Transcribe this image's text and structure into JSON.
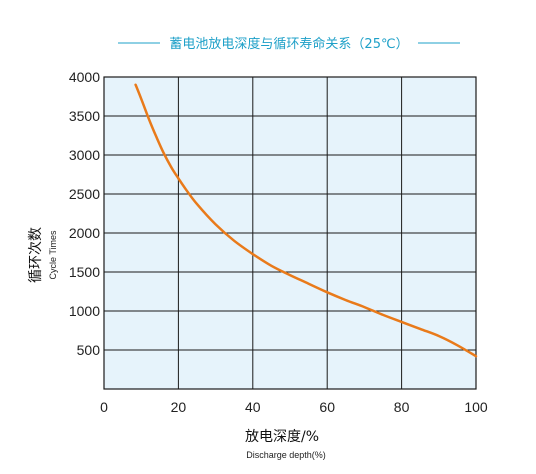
{
  "colors": {
    "title": "#1ea0c8",
    "plot_bg": "#e6f3fb",
    "grid": "#1a1a1a",
    "curve": "#e97a1a"
  },
  "chart_data": {
    "type": "line",
    "title": "蓄电池放电深度与循环寿命关系（25℃）",
    "xlabel": "放电深度/%",
    "xlabel_sub": "Discharge depth(%)",
    "ylabel": "循环次数",
    "ylabel_sub": "Cycle Times",
    "xlim": [
      0,
      100
    ],
    "ylim": [
      0,
      4000
    ],
    "x_ticks": [
      0,
      20,
      40,
      60,
      80,
      100
    ],
    "y_ticks": [
      500,
      1000,
      1500,
      2000,
      2500,
      3000,
      3500,
      4000
    ],
    "grid": true,
    "series": [
      {
        "x": [
          8.5,
          10,
          12,
          14,
          16,
          18,
          20,
          22,
          25,
          30,
          35,
          40,
          45,
          50,
          55,
          60,
          65,
          70,
          75,
          80,
          85,
          90,
          95,
          100
        ],
        "y": [
          3900,
          3720,
          3470,
          3240,
          3030,
          2850,
          2700,
          2560,
          2370,
          2110,
          1900,
          1730,
          1580,
          1460,
          1350,
          1240,
          1140,
          1050,
          950,
          860,
          770,
          680,
          560,
          420
        ]
      }
    ]
  }
}
